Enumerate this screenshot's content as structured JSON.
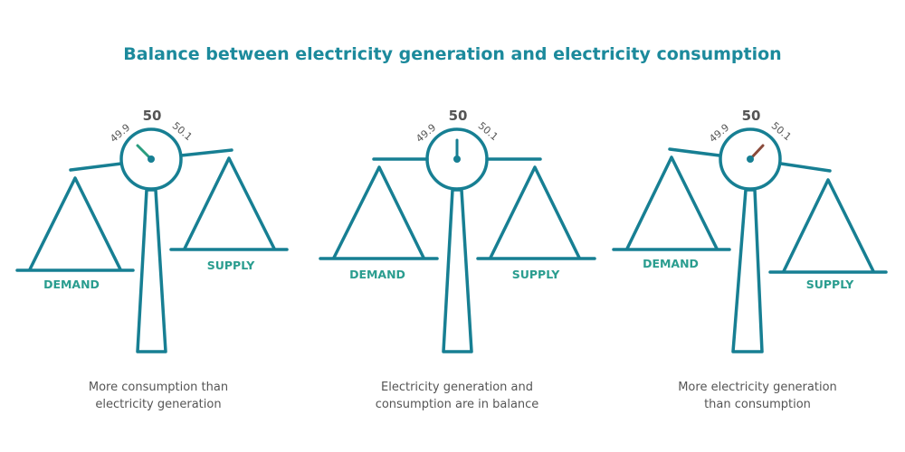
{
  "title": "Balance between electricity generation and electricity consumption",
  "colors": {
    "primary": "#177f93",
    "label": "#2a9d8f",
    "text": "#555555",
    "needle_low": "#2a9d7f",
    "needle_balanced": "#177f93",
    "needle_high": "#8a4a3a"
  },
  "scales": [
    {
      "gauge": {
        "low": "49.9",
        "mid": "50",
        "high": "50.1"
      },
      "reading": "49.9",
      "demand": "DEMAND",
      "supply": "SUPPLY",
      "caption": [
        "More consumption than",
        "electricity generation"
      ]
    },
    {
      "gauge": {
        "low": "49.9",
        "mid": "50",
        "high": "50.1"
      },
      "reading": "50",
      "demand": "DEMAND",
      "supply": "SUPPLY",
      "caption": [
        "Electricity generation and",
        "consumption are in balance"
      ]
    },
    {
      "gauge": {
        "low": "49.9",
        "mid": "50",
        "high": "50.1"
      },
      "reading": "50.1",
      "demand": "DEMAND",
      "supply": "SUPPLY",
      "caption": [
        "More electricity generation",
        "than consumption"
      ]
    }
  ]
}
